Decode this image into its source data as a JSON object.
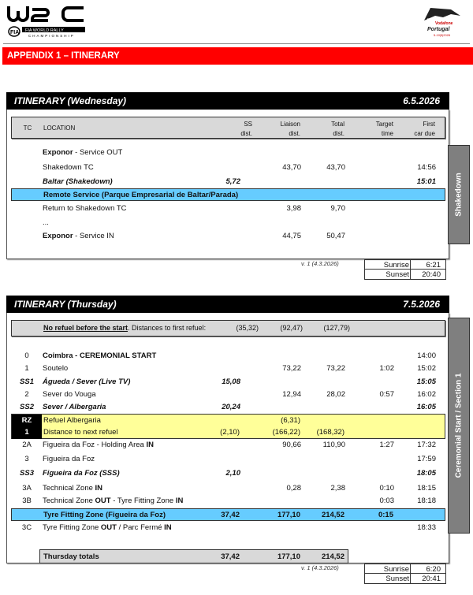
{
  "header": {
    "logo_left": "WRC FIA World Rally Championship",
    "logo_right": "Vodafone Rally de Portugal",
    "section_title": "APPENDIX 1 – ITINERARY"
  },
  "columns": {
    "tc": "TC",
    "location": "LOCATION",
    "ss1": "SS",
    "ss2": "dist.",
    "li1": "Liaison",
    "li2": "dist.",
    "to1": "Total",
    "to2": "dist.",
    "ta1": "Target",
    "ta2": "time",
    "fi1": "First",
    "fi2": "car due"
  },
  "wednesday": {
    "title": "ITINERARY (Wednesday)",
    "date": "6.5.2026",
    "side_label": "Shakedown",
    "rows": [
      {
        "tc": "",
        "loc": [
          {
            "t": "Exponor",
            "b": true
          },
          {
            "t": " - Service OUT"
          }
        ],
        "ss": "",
        "li": "",
        "to": "",
        "ta": "",
        "fi": "",
        "style": ""
      },
      {
        "tc": "",
        "loc": [
          {
            "t": "Shakedown TC"
          }
        ],
        "ss": "",
        "li": "43,70",
        "to": "43,70",
        "ta": "",
        "fi": "14:56",
        "style": ""
      },
      {
        "tc": "",
        "loc": [
          {
            "t": "Baltar (Shakedown)"
          }
        ],
        "ss": "5,72",
        "li": "",
        "to": "",
        "ta": "",
        "fi": "15:01",
        "style": "r-ital"
      },
      {
        "tc": "",
        "loc": [
          {
            "t": "Remote Service (Parque Empresarial de Baltar/Parada)"
          }
        ],
        "ss": "",
        "li": "",
        "to": "",
        "ta": "",
        "fi": "",
        "style": "r-blue"
      },
      {
        "tc": "",
        "loc": [
          {
            "t": "Return to Shakedown TC"
          }
        ],
        "ss": "",
        "li": "3,98",
        "to": "9,70",
        "ta": "",
        "fi": "",
        "style": ""
      },
      {
        "tc": "",
        "loc": [
          {
            "t": "..."
          }
        ],
        "ss": "",
        "li": "",
        "to": "",
        "ta": "",
        "fi": "",
        "style": ""
      },
      {
        "tc": "",
        "loc": [
          {
            "t": "Exponor",
            "b": true
          },
          {
            "t": " - Service IN"
          }
        ],
        "ss": "",
        "li": "44,75",
        "to": "50,47",
        "ta": "",
        "fi": "",
        "style": ""
      }
    ],
    "version": "v. 1 (4.3.2026)",
    "sunrise_label": "Sunrise",
    "sunrise": "6:21",
    "sunset_label": "Sunset",
    "sunset": "20:40"
  },
  "thursday": {
    "title": "ITINERARY (Thursday)",
    "date": "7.5.2026",
    "side_label": "Ceremonial Start / Section 1",
    "refuel_note": {
      "bold": "No refuel before the start",
      "rest": ". Distances to first refuel:",
      "ss": "(35,32)",
      "li": "(92,47)",
      "to": "(127,79)"
    },
    "rows": [
      {
        "tc": "0",
        "loc": [
          {
            "t": "Coimbra - CEREMONIAL START",
            "b": true
          }
        ],
        "ss": "",
        "li": "",
        "to": "",
        "ta": "",
        "fi": "14:00",
        "style": ""
      },
      {
        "tc": "1",
        "loc": [
          {
            "t": "Soutelo"
          }
        ],
        "ss": "",
        "li": "73,22",
        "to": "73,22",
        "ta": "1:02",
        "fi": "15:02",
        "style": ""
      },
      {
        "tc": "SS1",
        "loc": [
          {
            "t": "Águeda / Sever (Live TV)"
          }
        ],
        "ss": "15,08",
        "li": "",
        "to": "",
        "ta": "",
        "fi": "15:05",
        "style": "r-ital"
      },
      {
        "tc": "2",
        "loc": [
          {
            "t": "Sever do Vouga"
          }
        ],
        "ss": "",
        "li": "12,94",
        "to": "28,02",
        "ta": "0:57",
        "fi": "16:02",
        "style": ""
      },
      {
        "tc": "SS2",
        "loc": [
          {
            "t": "Sever / Albergaria"
          }
        ],
        "ss": "20,24",
        "li": "",
        "to": "",
        "ta": "",
        "fi": "16:05",
        "style": "r-ital"
      },
      {
        "tc": "RZ",
        "loc": [
          {
            "t": "Refuel Albergaria"
          }
        ],
        "ss": "",
        "li": "(6,31)",
        "to": "",
        "ta": "",
        "fi": "",
        "style": "r-yellow"
      },
      {
        "tc": "1",
        "loc": [
          {
            "t": "Distance to next refuel"
          }
        ],
        "ss": "(2,10)",
        "li": "(166,22)",
        "to": "(168,32)",
        "ta": "",
        "fi": "",
        "style": "r-yellow"
      },
      {
        "tc": "2A",
        "loc": [
          {
            "t": "Figueira da Foz - Holding Area  "
          },
          {
            "t": "IN",
            "b": true
          }
        ],
        "ss": "",
        "li": "90,66",
        "to": "110,90",
        "ta": "1:27",
        "fi": "17:32",
        "style": ""
      },
      {
        "tc": "3",
        "loc": [
          {
            "t": "Figueira da Foz"
          }
        ],
        "ss": "",
        "li": "",
        "to": "",
        "ta": "",
        "fi": "17:59",
        "style": ""
      },
      {
        "tc": "SS3",
        "loc": [
          {
            "t": "Figueira da Foz (SSS)"
          }
        ],
        "ss": "2,10",
        "li": "",
        "to": "",
        "ta": "",
        "fi": "18:05",
        "style": "r-ital"
      },
      {
        "tc": "3A",
        "loc": [
          {
            "t": "Technical Zone "
          },
          {
            "t": "IN",
            "b": true
          }
        ],
        "ss": "",
        "li": "0,28",
        "to": "2,38",
        "ta": "0:10",
        "fi": "18:15",
        "style": ""
      },
      {
        "tc": "3B",
        "loc": [
          {
            "t": "Technical Zone "
          },
          {
            "t": "OUT",
            "b": true
          },
          {
            "t": " - Tyre Fitting Zone "
          },
          {
            "t": "IN",
            "b": true
          }
        ],
        "ss": "",
        "li": "",
        "to": "",
        "ta": "0:03",
        "fi": "18:18",
        "style": ""
      },
      {
        "tc": "",
        "loc": [
          {
            "t": "Tyre Fitting Zone (Figueira da Foz)"
          }
        ],
        "ss": "37,42",
        "li": "177,10",
        "to": "214,52",
        "ta": "0:15",
        "fi": "",
        "style": "r-blue"
      },
      {
        "tc": "3C",
        "loc": [
          {
            "t": "Tyre Fitting Zone "
          },
          {
            "t": "OUT",
            "b": true
          },
          {
            "t": " / Parc Fermé "
          },
          {
            "t": "IN",
            "b": true
          }
        ],
        "ss": "",
        "li": "",
        "to": "",
        "ta": "",
        "fi": "18:33",
        "style": ""
      }
    ],
    "totals": {
      "label": "Thursday totals",
      "ss": "37,42",
      "li": "177,10",
      "to": "214,52"
    },
    "version": "v. 1 (4.3.2026)",
    "sunrise_label": "Sunrise",
    "sunrise": "6:20",
    "sunset_label": "Sunset",
    "sunset": "20:41"
  },
  "colors": {
    "accent_red": "#ff0000",
    "service_blue": "#66ccff",
    "refuel_yellow": "#ffff99"
  }
}
